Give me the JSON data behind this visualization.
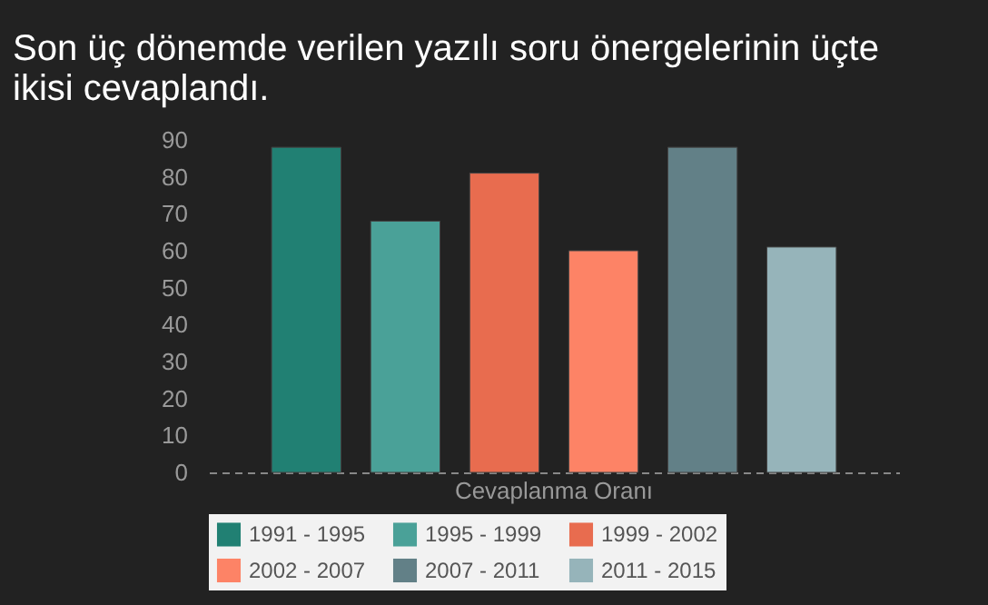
{
  "chart_data": {
    "type": "bar",
    "title": [
      "Son üç dönemde verilen yazılı soru önergelerinin üçte",
      "ikisi cevaplandı."
    ],
    "categories": [
      "Cevaplanma Oranı"
    ],
    "series": [
      {
        "name": "1991 - 1995",
        "color": "#218073",
        "values": [
          88
        ]
      },
      {
        "name": "1995 - 1999",
        "color": "#4aa198",
        "values": [
          68
        ]
      },
      {
        "name": "1999 - 2002",
        "color": "#e86c4f",
        "values": [
          81
        ]
      },
      {
        "name": "2002 - 2007",
        "color": "#fd8366",
        "values": [
          60
        ]
      },
      {
        "name": "2007 - 2011",
        "color": "#628087",
        "values": [
          88
        ]
      },
      {
        "name": "2011 - 2015",
        "color": "#96b4ba",
        "values": [
          61
        ]
      }
    ],
    "ylim": [
      0,
      90
    ],
    "yticks": [
      0,
      10,
      20,
      30,
      40,
      50,
      60,
      70,
      80,
      90
    ],
    "grid": false,
    "legend": "bottom"
  }
}
